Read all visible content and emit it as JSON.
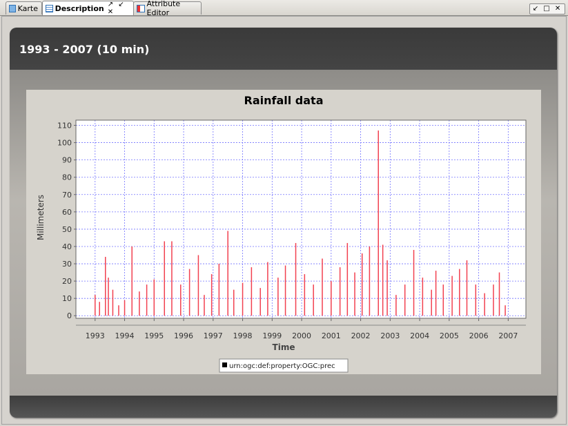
{
  "tabs": [
    {
      "label": "Karte",
      "icon": "map-icon",
      "active": false
    },
    {
      "label": "Description",
      "icon": "description-icon",
      "active": true
    },
    {
      "label": "Attribute Editor",
      "icon": "attribute-editor-icon",
      "active": false
    }
  ],
  "tab_controls": "↗ ↙ ✕",
  "window_controls": "↙ □ ✕",
  "panel": {
    "title": "1993 - 2007 (10 min)"
  },
  "chart_data": {
    "type": "bar",
    "title": "Rainfall data",
    "xlabel": "Time",
    "ylabel": "Millimeters",
    "xlim": [
      1992.35,
      2007.6
    ],
    "ylim": [
      -1.5,
      113
    ],
    "yticks": [
      0,
      10,
      20,
      30,
      40,
      50,
      60,
      70,
      80,
      90,
      100,
      110
    ],
    "xticks": [
      "1993",
      "1994",
      "1995",
      "1996",
      "1997",
      "1998",
      "1999",
      "2000",
      "2001",
      "2002",
      "2003",
      "2004",
      "2005",
      "2006",
      "2007"
    ],
    "grid": true,
    "bar_color": "#f2404f",
    "legend": {
      "label": "urn:ogc:def:property:OGC:prec",
      "position": "bottom-center"
    },
    "series": [
      {
        "name": "urn:ogc:def:property:OGC:prec",
        "x": [
          1993.0,
          1993.15,
          1993.35,
          1993.45,
          1993.6,
          1993.8,
          1994.0,
          1994.25,
          1994.5,
          1994.75,
          1995.0,
          1995.35,
          1995.6,
          1995.9,
          1996.2,
          1996.5,
          1996.7,
          1996.95,
          1997.2,
          1997.5,
          1997.7,
          1998.0,
          1998.3,
          1998.6,
          1998.85,
          1999.2,
          1999.45,
          1999.8,
          2000.1,
          2000.4,
          2000.7,
          2001.0,
          2001.3,
          2001.55,
          2001.8,
          2002.05,
          2002.3,
          2002.6,
          2002.75,
          2002.9,
          2003.2,
          2003.5,
          2003.8,
          2004.1,
          2004.4,
          2004.55,
          2004.8,
          2005.1,
          2005.35,
          2005.6,
          2005.9,
          2006.2,
          2006.5,
          2006.7,
          2006.9
        ],
        "values": [
          12,
          8,
          34,
          22,
          15,
          6,
          9,
          40,
          14,
          18,
          21,
          43,
          43,
          18,
          27,
          35,
          12,
          24,
          30,
          49,
          15,
          19,
          28,
          16,
          31,
          22,
          29,
          42,
          24,
          18,
          33,
          20,
          28,
          42,
          25,
          36,
          40,
          107,
          41,
          32,
          12,
          18,
          38,
          22,
          15,
          26,
          18,
          23,
          27,
          32,
          18,
          13,
          18,
          25,
          6
        ]
      }
    ]
  }
}
